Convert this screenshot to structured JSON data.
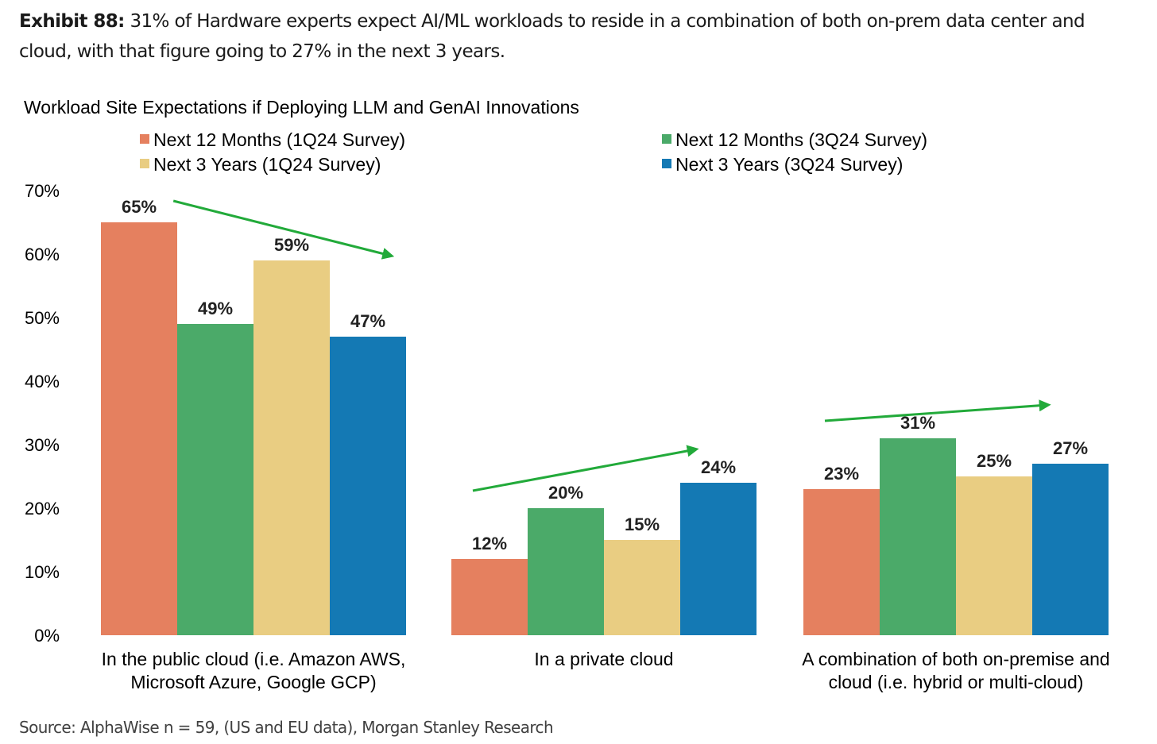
{
  "exhibit": {
    "label": "Exhibit 88:",
    "text": " 31% of Hardware experts expect AI/ML workloads to reside in a combination of both on-prem data center and cloud, with that figure going to 27% in the next 3 years."
  },
  "source": "Source: AlphaWise n = 59, (US and EU data), Morgan Stanley Research",
  "chart_data": {
    "type": "bar",
    "title": "Workload Site Expectations if Deploying LLM and GenAI Innovations",
    "categories": [
      [
        "In the public cloud (i.e. Amazon AWS,",
        "Microsoft Azure, Google GCP)"
      ],
      [
        "In a private cloud"
      ],
      [
        "A combination of both on-premise and",
        "cloud (i.e. hybrid or multi-cloud)"
      ]
    ],
    "series": [
      {
        "name": "Next 12 Months (1Q24 Survey)",
        "color": "#E5805F",
        "values": [
          65,
          12,
          23
        ],
        "labels": [
          "65%",
          "12%",
          "23%"
        ]
      },
      {
        "name": "Next 12 Months (3Q24 Survey)",
        "color": "#4BAA69",
        "values": [
          49,
          20,
          31
        ],
        "labels": [
          "49%",
          "20%",
          "31%"
        ]
      },
      {
        "name": "Next 3 Years (1Q24 Survey)",
        "color": "#E9CD82",
        "values": [
          59,
          15,
          25
        ],
        "labels": [
          "59%",
          "15%",
          "25%"
        ]
      },
      {
        "name": "Next 3 Years (3Q24 Survey)",
        "color": "#1479B4",
        "values": [
          47,
          24,
          27
        ],
        "labels": [
          "47%",
          "24%",
          "27%"
        ]
      }
    ],
    "ylim": [
      0,
      70
    ],
    "yticks": [
      "0%",
      "10%",
      "20%",
      "30%",
      "40%",
      "50%",
      "60%",
      "70%"
    ],
    "xlabel": "",
    "ylabel": "",
    "legend_position": "top",
    "grid": false,
    "annotations": [
      {
        "type": "trend-arrow",
        "category": 0,
        "direction": "down",
        "color": "#22AA3A"
      },
      {
        "type": "trend-arrow",
        "category": 1,
        "direction": "up",
        "color": "#22AA3A"
      },
      {
        "type": "trend-arrow",
        "category": 2,
        "direction": "up",
        "color": "#22AA3A"
      }
    ]
  }
}
